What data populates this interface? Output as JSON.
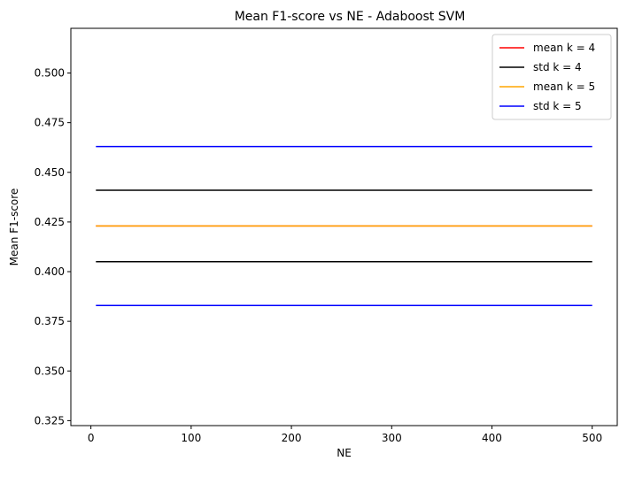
{
  "chart_data": {
    "type": "line",
    "title": "Mean F1-score vs NE - Adaboost SVM",
    "xlabel": "NE",
    "ylabel": "Mean F1-score",
    "xlim": [
      -20,
      525
    ],
    "ylim": [
      0.3225,
      0.5225
    ],
    "xticks": [
      0,
      100,
      200,
      300,
      400,
      500
    ],
    "xtick_labels": [
      "0",
      "100",
      "200",
      "300",
      "400",
      "500"
    ],
    "yticks": [
      0.325,
      0.35,
      0.375,
      0.4,
      0.425,
      0.45,
      0.475,
      0.5
    ],
    "ytick_labels": [
      "0.325",
      "0.350",
      "0.375",
      "0.400",
      "0.425",
      "0.450",
      "0.475",
      "0.500"
    ],
    "grid": false,
    "legend_position": "top-right",
    "series": [
      {
        "name": "mean k = 4",
        "color": "#ff0000",
        "x": [
          5,
          500
        ],
        "y": [
          0.423,
          0.423
        ],
        "style": "solid"
      },
      {
        "name": "std k = 4",
        "color": "#000000",
        "x": [
          5,
          500,
          null,
          5,
          500
        ],
        "y": [
          0.441,
          0.441,
          null,
          0.405,
          0.405
        ],
        "style": "solid"
      },
      {
        "name": "mean k = 5",
        "color": "#ffa500",
        "x": [
          5,
          500
        ],
        "y": [
          0.423,
          0.423
        ],
        "style": "solid"
      },
      {
        "name": "std k = 5",
        "color": "#0000ff",
        "x": [
          5,
          500,
          null,
          5,
          500
        ],
        "y": [
          0.463,
          0.463,
          null,
          0.383,
          0.383
        ],
        "style": "solid"
      }
    ]
  }
}
